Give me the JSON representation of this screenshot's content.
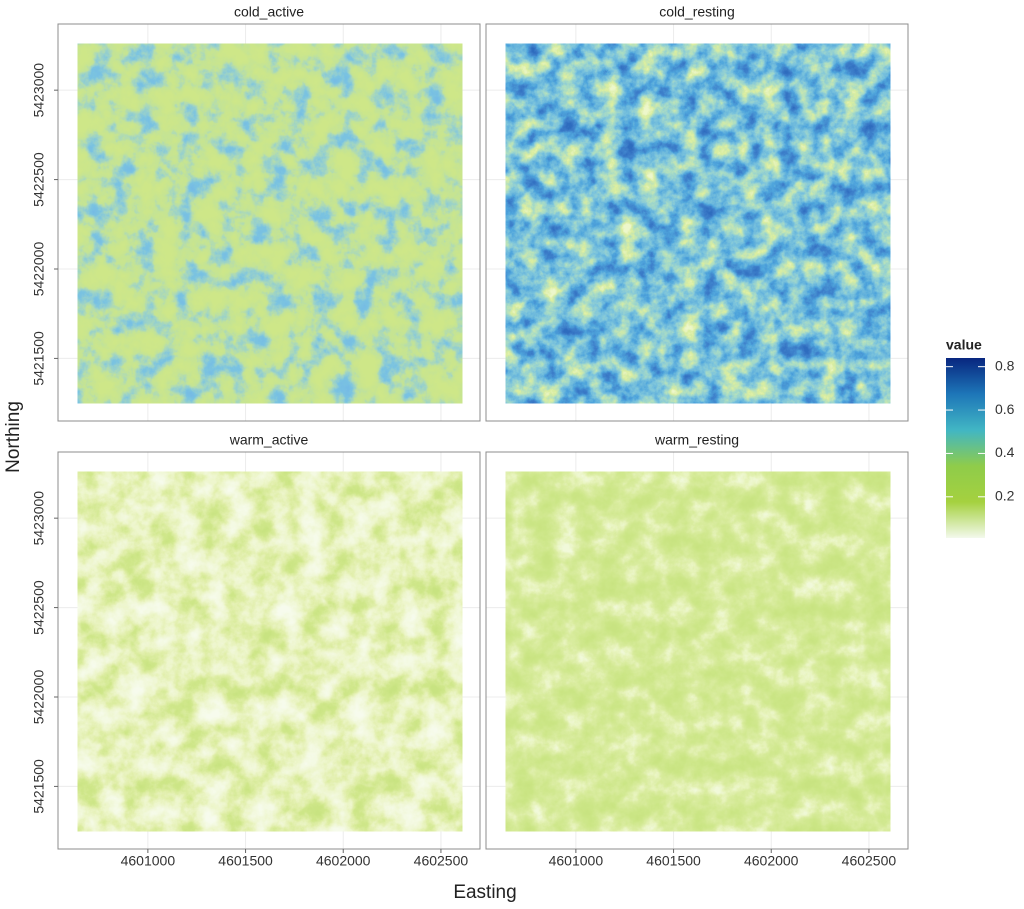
{
  "chart_data": {
    "type": "raster",
    "facets": [
      "cold_active",
      "cold_resting",
      "warm_active",
      "warm_resting"
    ],
    "xlabel": "Easting",
    "ylabel": "Northing",
    "xlim": [
      4600540,
      4602700
    ],
    "ylim": [
      5421150,
      5423370
    ],
    "xticks": [
      4601000,
      4601500,
      4602000,
      4602500
    ],
    "yticks": [
      5421500,
      5422000,
      5422500,
      5423000
    ],
    "raster_extent": {
      "x": [
        4600640,
        4602610
      ],
      "y": [
        5421250,
        5423260
      ]
    },
    "grid": true,
    "colorbar": {
      "title": "value",
      "lim": [
        0.01,
        0.84
      ],
      "ticks": [
        0.2,
        0.4,
        0.6,
        0.8
      ],
      "colors": [
        "#f3f9ec",
        "#a5d13f",
        "#8fcc4a",
        "#41b6c4",
        "#1d76b8",
        "#08267f"
      ]
    }
  }
}
